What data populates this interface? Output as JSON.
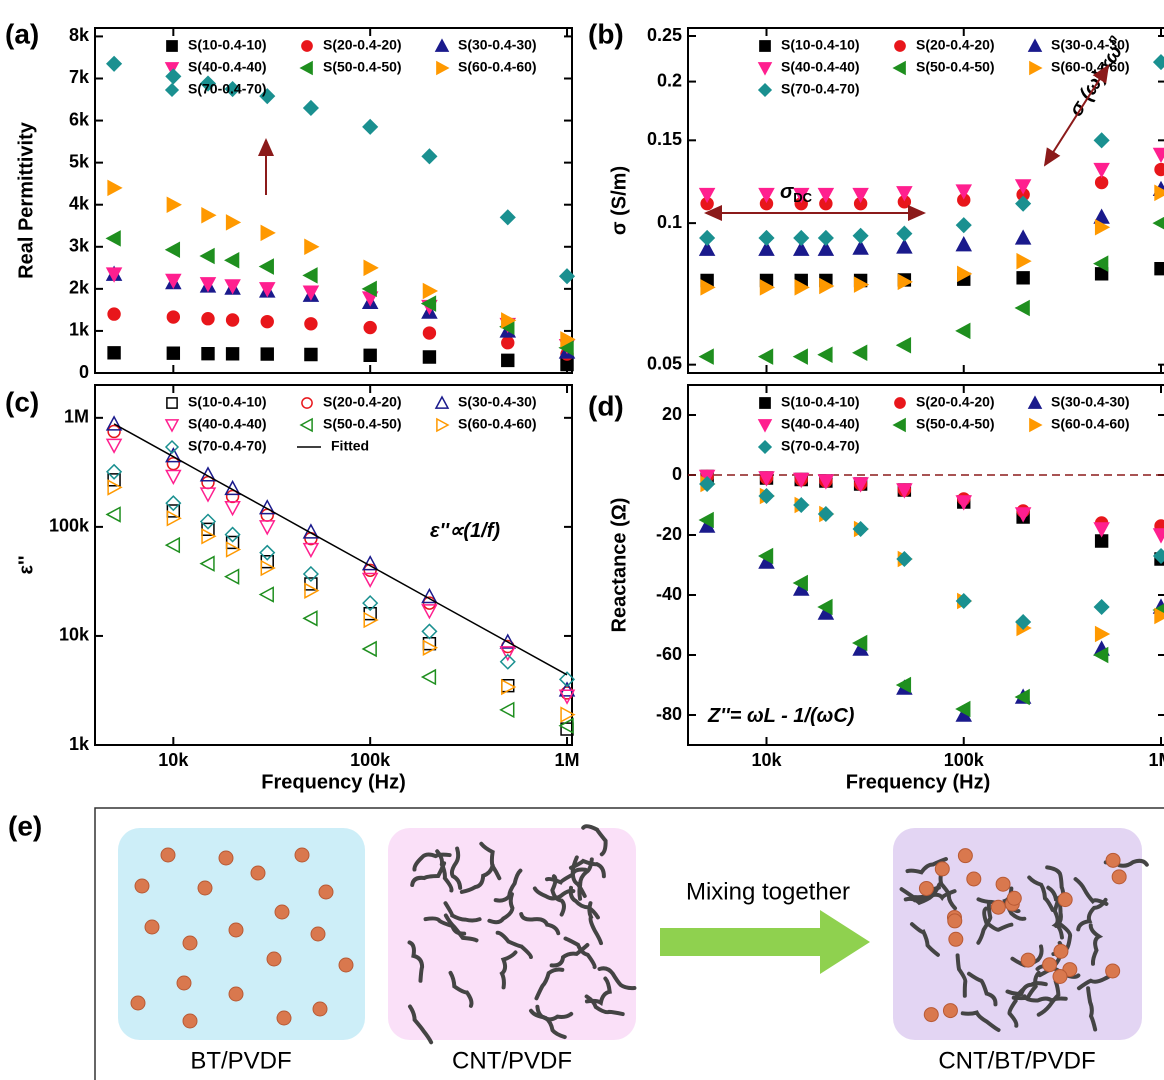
{
  "chart_data": [
    {
      "type": "scatter",
      "label": "(a)",
      "ylabel": "Real Permittivity",
      "xlog": true,
      "ylog": false,
      "filled": true,
      "show_xtick_labels": false,
      "x": [
        5000,
        10000,
        15000,
        20000,
        30000,
        50000,
        100000,
        200000,
        500000,
        1000000
      ],
      "xlim": [
        4000,
        1060000
      ],
      "xticks": [
        10000,
        100000,
        1000000
      ],
      "ylim": [
        0,
        8200
      ],
      "yticks": [
        0,
        {
          "value": 1000,
          "label": "1k"
        },
        {
          "value": 2000,
          "label": "2k"
        },
        {
          "value": 3000,
          "label": "3k"
        },
        {
          "value": 4000,
          "label": "4k"
        },
        {
          "value": 5000,
          "label": "5k"
        },
        {
          "value": 6000,
          "label": "6k"
        },
        {
          "value": 7000,
          "label": "7k"
        },
        {
          "value": 8000,
          "label": "8k"
        }
      ],
      "series": [
        {
          "name": "S(10-0.4-10)",
          "color": "#000000",
          "marker": "square",
          "values": [
            480,
            470,
            460,
            455,
            450,
            440,
            420,
            380,
            300,
            200
          ]
        },
        {
          "name": "S(20-0.4-20)",
          "color": "#e8161b",
          "marker": "circle",
          "values": [
            1400,
            1330,
            1290,
            1260,
            1220,
            1170,
            1080,
            950,
            720,
            450
          ]
        },
        {
          "name": "S(30-0.4-30)",
          "color": "#1a1a8c",
          "marker": "up",
          "values": [
            2350,
            2150,
            2070,
            2020,
            1950,
            1850,
            1680,
            1450,
            1000,
            500
          ]
        },
        {
          "name": "S(40-0.4-40)",
          "color": "#ff1f8f",
          "marker": "down",
          "values": [
            2350,
            2200,
            2120,
            2070,
            2000,
            1920,
            1780,
            1580,
            1150,
            650
          ]
        },
        {
          "name": "S(50-0.4-50)",
          "color": "#1f8f1f",
          "marker": "left",
          "values": [
            3200,
            2930,
            2780,
            2680,
            2530,
            2320,
            2000,
            1650,
            1100,
            600
          ]
        },
        {
          "name": "S(60-0.4-60)",
          "color": "#ff9900",
          "marker": "right",
          "values": [
            4400,
            4000,
            3750,
            3580,
            3330,
            3000,
            2500,
            1950,
            1250,
            800
          ]
        },
        {
          "name": "S(70-0.4-70)",
          "color": "#1a9090",
          "marker": "diamond",
          "values": [
            7350,
            7050,
            6880,
            6750,
            6580,
            6300,
            5850,
            5150,
            3700,
            2300
          ]
        }
      ]
    },
    {
      "type": "scatter",
      "label": "(b)",
      "ylabel": "σ (S/m)",
      "xlog": true,
      "ylog": true,
      "filled": true,
      "show_xtick_labels": false,
      "x": [
        5000,
        10000,
        15000,
        20000,
        30000,
        50000,
        100000,
        200000,
        500000,
        1000000
      ],
      "xlim": [
        4000,
        1060000
      ],
      "xticks": [
        10000,
        100000,
        1000000
      ],
      "ylim": [
        0.048,
        0.26
      ],
      "yticks": [
        0.05,
        0.1,
        0.15,
        0.2,
        0.25
      ],
      "annotations": [
        {
          "text": "σ",
          "sub": "DC"
        },
        {
          "text": "σ (ω)∝ω",
          "sup": "n"
        }
      ],
      "series": [
        {
          "name": "S(10-0.4-10)",
          "color": "#000000",
          "marker": "square",
          "values": [
            0.0755,
            0.0755,
            0.0755,
            0.0755,
            0.0755,
            0.0757,
            0.076,
            0.0765,
            0.078,
            0.08
          ]
        },
        {
          "name": "S(20-0.4-20)",
          "color": "#e8161b",
          "marker": "circle",
          "values": [
            0.11,
            0.11,
            0.11,
            0.11,
            0.11,
            0.111,
            0.112,
            0.115,
            0.122,
            0.13
          ]
        },
        {
          "name": "S(30-0.4-30)",
          "color": "#1a1a8c",
          "marker": "up",
          "values": [
            0.088,
            0.088,
            0.088,
            0.088,
            0.0885,
            0.089,
            0.09,
            0.093,
            0.103,
            0.118
          ]
        },
        {
          "name": "S(40-0.4-40)",
          "color": "#ff1f8f",
          "marker": "down",
          "values": [
            0.115,
            0.115,
            0.115,
            0.115,
            0.115,
            0.116,
            0.117,
            0.12,
            0.13,
            0.14
          ]
        },
        {
          "name": "S(50-0.4-50)",
          "color": "#1f8f1f",
          "marker": "left",
          "values": [
            0.052,
            0.052,
            0.052,
            0.0525,
            0.053,
            0.055,
            0.059,
            0.066,
            0.082,
            0.1
          ]
        },
        {
          "name": "S(60-0.4-60)",
          "color": "#ff9900",
          "marker": "right",
          "values": [
            0.073,
            0.073,
            0.073,
            0.0735,
            0.074,
            0.075,
            0.078,
            0.083,
            0.098,
            0.116
          ]
        },
        {
          "name": "S(70-0.4-70)",
          "color": "#1a9090",
          "marker": "diamond",
          "values": [
            0.093,
            0.093,
            0.093,
            0.093,
            0.094,
            0.095,
            0.099,
            0.11,
            0.15,
            0.22
          ]
        }
      ]
    },
    {
      "type": "scatter",
      "label": "(c)",
      "ylabel": "ε''",
      "xlabel": "Frequency (Hz)",
      "xlog": true,
      "ylog": true,
      "filled": false,
      "show_xtick_labels": true,
      "x": [
        5000,
        10000,
        15000,
        20000,
        30000,
        50000,
        100000,
        200000,
        500000,
        1000000
      ],
      "xlim": [
        4000,
        1060000
      ],
      "xticks": [
        {
          "value": 10000,
          "label": "10k"
        },
        {
          "value": 100000,
          "label": "100k"
        },
        {
          "value": 1000000,
          "label": "1M"
        }
      ],
      "ylim": [
        1000,
        2000000
      ],
      "yticks": [
        {
          "value": 1000,
          "label": "1k"
        },
        {
          "value": 10000,
          "label": "10k"
        },
        {
          "value": 100000,
          "label": "100k"
        },
        {
          "value": 1000000,
          "label": "1M"
        }
      ],
      "annotations": [
        {
          "text": "ε''∝(1/f)"
        }
      ],
      "series": [
        {
          "name": "S(10-0.4-10)",
          "color": "#000000",
          "marker": "square",
          "values": [
            270000,
            140000,
            95000,
            72000,
            48000,
            30000,
            16000,
            8500,
            3500,
            1400
          ]
        },
        {
          "name": "S(20-0.4-20)",
          "color": "#e8161b",
          "marker": "circle",
          "values": [
            750000,
            380000,
            255000,
            190000,
            128000,
            78000,
            40000,
            20000,
            8000,
            3000
          ]
        },
        {
          "name": "S(30-0.4-30)",
          "color": "#1a1a8c",
          "marker": "up",
          "values": [
            880000,
            450000,
            300000,
            225000,
            150000,
            90000,
            46000,
            23000,
            8800,
            3200
          ]
        },
        {
          "name": "S(40-0.4-40)",
          "color": "#ff1f8f",
          "marker": "down",
          "values": [
            560000,
            290000,
            200000,
            150000,
            100000,
            62000,
            33000,
            17000,
            7000,
            2800
          ]
        },
        {
          "name": "S(50-0.4-50)",
          "color": "#1f8f1f",
          "marker": "left",
          "values": [
            130000,
            68000,
            46000,
            35000,
            24000,
            14500,
            7600,
            4200,
            2100,
            1500
          ]
        },
        {
          "name": "S(60-0.4-60)",
          "color": "#ff9900",
          "marker": "right",
          "values": [
            230000,
            120000,
            82000,
            62000,
            42000,
            26000,
            14000,
            7800,
            3400,
            1900
          ]
        },
        {
          "name": "S(70-0.4-70)",
          "color": "#1a9090",
          "marker": "diamond",
          "values": [
            320000,
            165000,
            112000,
            85000,
            58000,
            37000,
            20000,
            11000,
            5800,
            4000
          ]
        },
        {
          "name": "Fitted",
          "color": "#000000",
          "marker": "line",
          "values": [
            880000,
            440000,
            293000,
            220000,
            147000,
            88000,
            44000,
            22000,
            8800,
            4400
          ]
        }
      ]
    },
    {
      "type": "scatter",
      "label": "(d)",
      "ylabel": "Reactance (Ω)",
      "xlabel": "Frequency (Hz)",
      "xlog": true,
      "ylog": false,
      "filled": true,
      "show_xtick_labels": true,
      "hline": 0,
      "x": [
        5000,
        10000,
        15000,
        20000,
        30000,
        50000,
        100000,
        200000,
        500000,
        1000000
      ],
      "xlim": [
        4000,
        1060000
      ],
      "xticks": [
        {
          "value": 10000,
          "label": "10k"
        },
        {
          "value": 100000,
          "label": "100k"
        },
        {
          "value": 1000000,
          "label": "1M"
        }
      ],
      "ylim": [
        -90,
        30
      ],
      "yticks": [
        -80,
        -60,
        -40,
        -20,
        0,
        20
      ],
      "annotations": [
        {
          "text": "Z''= ωL - 1/(ωC)"
        }
      ],
      "series": [
        {
          "name": "S(10-0.4-10)",
          "color": "#000000",
          "marker": "square",
          "values": [
            -0.5,
            -1,
            -1.5,
            -2,
            -3,
            -5,
            -9,
            -14,
            -22,
            -28
          ]
        },
        {
          "name": "S(20-0.4-20)",
          "color": "#e8161b",
          "marker": "circle",
          "values": [
            -0.5,
            -1,
            -1.5,
            -2,
            -3,
            -5,
            -8,
            -12,
            -16,
            -17
          ]
        },
        {
          "name": "S(30-0.4-30)",
          "color": "#1a1a8c",
          "marker": "up",
          "values": [
            -17,
            -29,
            -38,
            -46,
            -58,
            -71,
            -80,
            -74,
            -58,
            -44
          ]
        },
        {
          "name": "S(40-0.4-40)",
          "color": "#ff1f8f",
          "marker": "down",
          "values": [
            -0.5,
            -1,
            -1.5,
            -2,
            -3,
            -5,
            -9,
            -13,
            -18,
            -20
          ]
        },
        {
          "name": "S(50-0.4-50)",
          "color": "#1f8f1f",
          "marker": "left",
          "values": [
            -15,
            -27,
            -36,
            -44,
            -56,
            -70,
            -78,
            -74,
            -60,
            -45
          ]
        },
        {
          "name": "S(60-0.4-60)",
          "color": "#ff9900",
          "marker": "right",
          "values": [
            -3,
            -7,
            -10,
            -13,
            -18,
            -28,
            -42,
            -51,
            -53,
            -47
          ]
        },
        {
          "name": "S(70-0.4-70)",
          "color": "#1a9090",
          "marker": "diamond",
          "values": [
            -3,
            -7,
            -10,
            -13,
            -18,
            -28,
            -42,
            -49,
            -44,
            -27
          ]
        }
      ]
    }
  ],
  "diagram": {
    "label": "(e)",
    "panels": [
      {
        "label": "BT/PVDF"
      },
      {
        "label": "CNT/PVDF"
      },
      {
        "label": "CNT/BT/PVDF"
      }
    ],
    "arrow_label": "Mixing together"
  }
}
